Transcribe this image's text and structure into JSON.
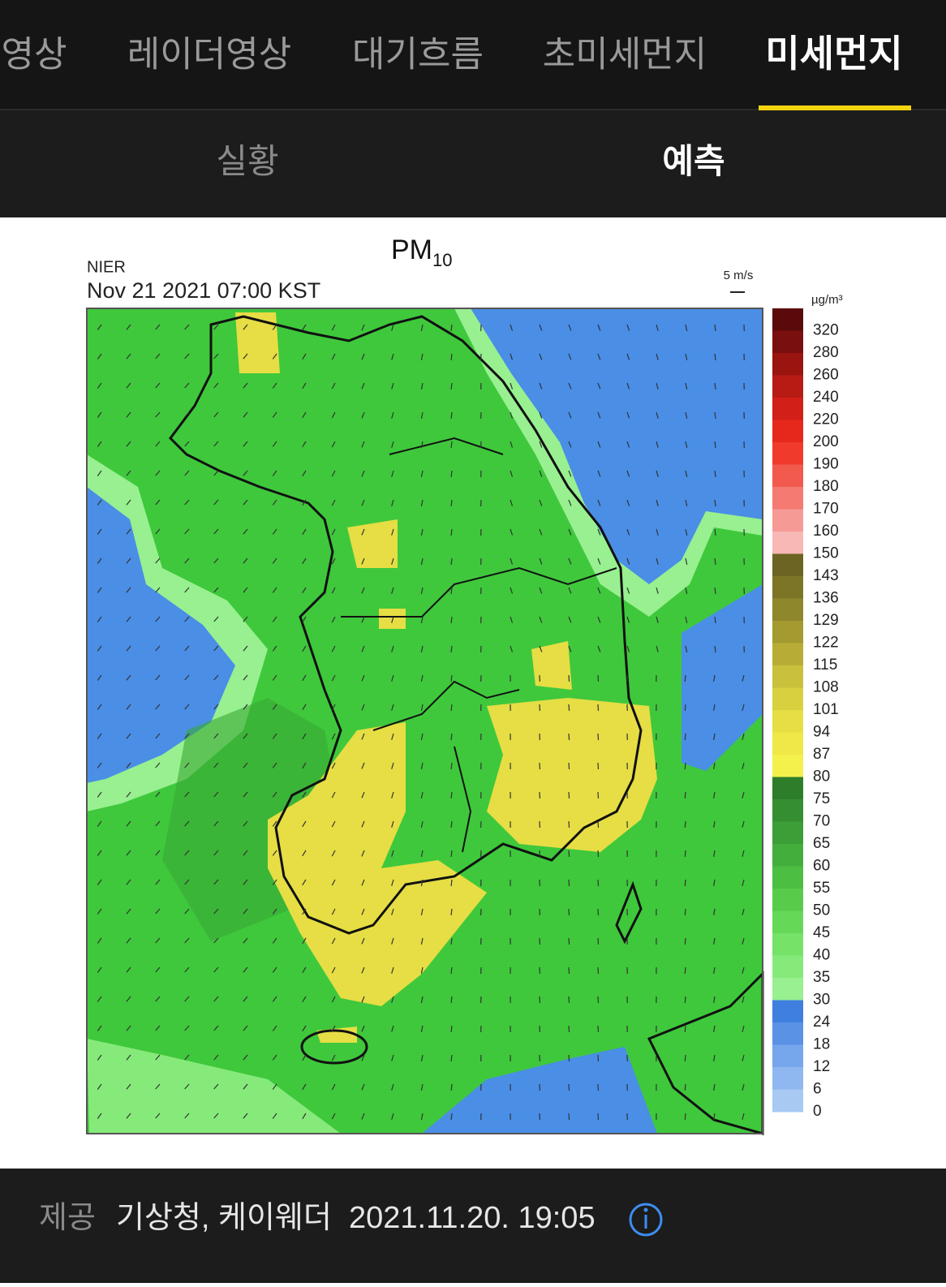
{
  "tabs": [
    "영상",
    "레이더영상",
    "대기흐름",
    "초미세먼지",
    "미세먼지"
  ],
  "sub_tabs": [
    "실황",
    "예측"
  ],
  "map": {
    "title": "PM",
    "title_subscript": "10",
    "source": "NIER",
    "timestamp": "Nov 21 2021 07:00 KST",
    "wind_scale": "5 m/s",
    "unit": "µg/m³",
    "colorbar": {
      "labels": [
        "320",
        "280",
        "260",
        "240",
        "220",
        "200",
        "190",
        "180",
        "170",
        "160",
        "150",
        "143",
        "136",
        "129",
        "122",
        "115",
        "108",
        "101",
        "94",
        "87",
        "80",
        "75",
        "70",
        "65",
        "60",
        "55",
        "50",
        "45",
        "40",
        "35",
        "30",
        "24",
        "18",
        "12",
        "6",
        "0"
      ],
      "colors": [
        "#5a0a0a",
        "#7a0f0f",
        "#9a1410",
        "#b81a14",
        "#d22018",
        "#e6281c",
        "#f03a2c",
        "#f25a4e",
        "#f47a72",
        "#f69a96",
        "#f8b8b6",
        "#6b6422",
        "#7d7526",
        "#8f872c",
        "#a39a30",
        "#b7ad36",
        "#c9c03c",
        "#d9d040",
        "#e6de44",
        "#efe848",
        "#f4f04c",
        "#2e7d2a",
        "#358e30",
        "#3c9e36",
        "#44ae3c",
        "#4cbe42",
        "#58cc4a",
        "#66d858",
        "#76e268",
        "#86ea7a",
        "#98f090",
        "#3f7fe0",
        "#5a92e6",
        "#76a6ec",
        "#90b8f0",
        "#a8c9f2"
      ]
    }
  },
  "footer": {
    "label": "제공",
    "providers": "기상청, 케이웨더",
    "datetime": "2021.11.20. 19:05"
  }
}
